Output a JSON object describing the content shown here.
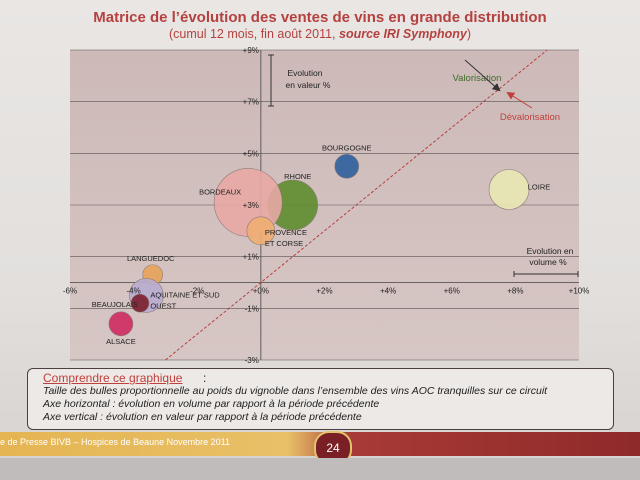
{
  "header": {
    "title": "Matrice de l’évolution des ventes de vins en grande distribution",
    "subtitle_prefix": "(cumul 12 mois, fin août 2011, ",
    "subtitle_source": "source IRI Symphony",
    "subtitle_suffix": ")"
  },
  "chart_data": {
    "type": "bubble",
    "x_ticks": [
      "-6%",
      "-4%",
      "-2%",
      "+0%",
      "+2%",
      "+4%",
      "+6%",
      "+8%",
      "+10%"
    ],
    "y_ticks": [
      "+9%",
      "+7%",
      "+5%",
      "+3%",
      "+1%",
      "-1%",
      "-3%"
    ],
    "xlim": [
      -6,
      10
    ],
    "ylim": [
      -3,
      9
    ],
    "grid": "horizontal",
    "diagonal_line": "y = x",
    "x_axis_title": "Evolution en volume %",
    "y_axis_title": "Evolution en valeur %",
    "annotations": {
      "above_diagonal": "Valorisation",
      "below_diagonal": "Dévalorisation"
    },
    "series": [
      {
        "label": "BOURGOGNE",
        "x": 2.7,
        "y": 4.5,
        "size": 1.2,
        "color": "#2e5f9c"
      },
      {
        "label": "RHONE",
        "x": 1.0,
        "y": 3.0,
        "size": 2.5,
        "color": "#5e8c2d"
      },
      {
        "label": "BORDEAUX",
        "x": -0.4,
        "y": 3.1,
        "size": 3.4,
        "color": "#e8a9a4"
      },
      {
        "label": "PROVENCE ET CORSE",
        "x": 0.0,
        "y": 2.0,
        "size": 1.4,
        "color": "#efae73"
      },
      {
        "label": "LOIRE",
        "x": 7.8,
        "y": 3.6,
        "size": 2.0,
        "color": "#e8e7b2"
      },
      {
        "label": "LANGUEDOC",
        "x": -3.4,
        "y": 0.3,
        "size": 1.0,
        "color": "#e7a35a"
      },
      {
        "label": "AQUITAINE ET SUD OUEST",
        "x": -3.6,
        "y": -0.5,
        "size": 1.7,
        "color": "#b9acd0"
      },
      {
        "label": "BEAUJOLAIS",
        "x": -3.8,
        "y": -0.8,
        "size": 0.9,
        "color": "#7b1f2c"
      },
      {
        "label": "ALSACE",
        "x": -4.4,
        "y": -1.6,
        "size": 1.2,
        "color": "#cf2a62"
      }
    ]
  },
  "legend": {
    "heading": "Comprendre ce graphique",
    "colon": ":",
    "line1": "Taille des bulles proportionnelle au poids du vignoble dans l’ensemble des vins AOC tranquilles sur ce circuit",
    "line2": "Axe horizontal : évolution en volume par rapport à la période précédente",
    "line3": "Axe vertical : évolution en valeur par rapport à la période précédente"
  },
  "footer": {
    "text": "e de Presse BIVB – Hospices de Beaune Novembre 2011",
    "page_number": "24"
  }
}
